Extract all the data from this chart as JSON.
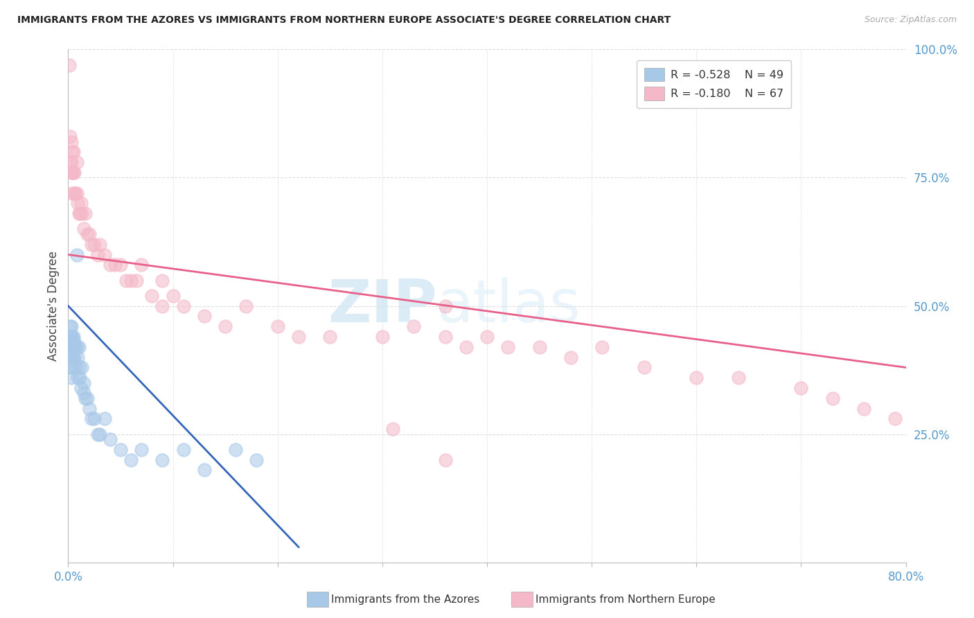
{
  "title": "IMMIGRANTS FROM THE AZORES VS IMMIGRANTS FROM NORTHERN EUROPE ASSOCIATE'S DEGREE CORRELATION CHART",
  "source": "Source: ZipAtlas.com",
  "xlabel_blue": "Immigrants from the Azores",
  "xlabel_pink": "Immigrants from Northern Europe",
  "ylabel": "Associate's Degree",
  "xlim": [
    0.0,
    0.8
  ],
  "ylim": [
    0.0,
    1.0
  ],
  "ytick_labels_right": [
    "25.0%",
    "50.0%",
    "75.0%",
    "100.0%"
  ],
  "legend_blue_r": "R = -0.528",
  "legend_blue_n": "N = 49",
  "legend_pink_r": "R = -0.180",
  "legend_pink_n": "N = 67",
  "color_blue": "#a8c8e8",
  "color_pink": "#f4b8c8",
  "color_blue_line": "#3366bb",
  "color_pink_line": "#e8608a",
  "color_axis_label": "#5599cc",
  "color_grid": "#dddddd",
  "background": "#ffffff",
  "watermark_zip": "ZIP",
  "watermark_atlas": "atlas",
  "blue_line_x0": 0.0,
  "blue_line_y0": 0.5,
  "blue_line_x1": 0.22,
  "blue_line_y1": 0.03,
  "pink_line_x0": 0.0,
  "pink_line_y0": 0.6,
  "pink_line_x1": 0.8,
  "pink_line_y1": 0.38,
  "blue_points_x": [
    0.001,
    0.001,
    0.002,
    0.002,
    0.002,
    0.002,
    0.003,
    0.003,
    0.003,
    0.003,
    0.003,
    0.004,
    0.004,
    0.004,
    0.005,
    0.005,
    0.005,
    0.006,
    0.006,
    0.007,
    0.007,
    0.008,
    0.008,
    0.009,
    0.009,
    0.01,
    0.01,
    0.011,
    0.012,
    0.013,
    0.015,
    0.015,
    0.016,
    0.018,
    0.02,
    0.022,
    0.025,
    0.028,
    0.03,
    0.035,
    0.04,
    0.05,
    0.06,
    0.07,
    0.09,
    0.11,
    0.13,
    0.16,
    0.18
  ],
  "blue_points_y": [
    0.43,
    0.4,
    0.46,
    0.44,
    0.42,
    0.38,
    0.46,
    0.44,
    0.42,
    0.4,
    0.36,
    0.44,
    0.42,
    0.38,
    0.44,
    0.42,
    0.4,
    0.43,
    0.4,
    0.42,
    0.38,
    0.6,
    0.42,
    0.4,
    0.36,
    0.42,
    0.38,
    0.36,
    0.34,
    0.38,
    0.35,
    0.33,
    0.32,
    0.32,
    0.3,
    0.28,
    0.28,
    0.25,
    0.25,
    0.28,
    0.24,
    0.22,
    0.2,
    0.22,
    0.2,
    0.22,
    0.18,
    0.22,
    0.2
  ],
  "pink_points_x": [
    0.001,
    0.002,
    0.002,
    0.003,
    0.003,
    0.003,
    0.004,
    0.004,
    0.004,
    0.005,
    0.005,
    0.006,
    0.006,
    0.007,
    0.008,
    0.008,
    0.009,
    0.01,
    0.011,
    0.012,
    0.013,
    0.015,
    0.016,
    0.018,
    0.02,
    0.022,
    0.025,
    0.028,
    0.03,
    0.035,
    0.04,
    0.045,
    0.05,
    0.055,
    0.06,
    0.065,
    0.07,
    0.08,
    0.09,
    0.1,
    0.11,
    0.13,
    0.15,
    0.17,
    0.2,
    0.22,
    0.25,
    0.3,
    0.33,
    0.36,
    0.38,
    0.4,
    0.42,
    0.45,
    0.48,
    0.51,
    0.55,
    0.6,
    0.64,
    0.7,
    0.73,
    0.76,
    0.79,
    0.09,
    0.31,
    0.36,
    0.36
  ],
  "pink_points_y": [
    0.97,
    0.83,
    0.78,
    0.82,
    0.78,
    0.76,
    0.8,
    0.76,
    0.72,
    0.8,
    0.76,
    0.76,
    0.72,
    0.72,
    0.78,
    0.72,
    0.7,
    0.68,
    0.68,
    0.7,
    0.68,
    0.65,
    0.68,
    0.64,
    0.64,
    0.62,
    0.62,
    0.6,
    0.62,
    0.6,
    0.58,
    0.58,
    0.58,
    0.55,
    0.55,
    0.55,
    0.58,
    0.52,
    0.5,
    0.52,
    0.5,
    0.48,
    0.46,
    0.5,
    0.46,
    0.44,
    0.44,
    0.44,
    0.46,
    0.44,
    0.42,
    0.44,
    0.42,
    0.42,
    0.4,
    0.42,
    0.38,
    0.36,
    0.36,
    0.34,
    0.32,
    0.3,
    0.28,
    0.55,
    0.26,
    0.2,
    0.5
  ]
}
